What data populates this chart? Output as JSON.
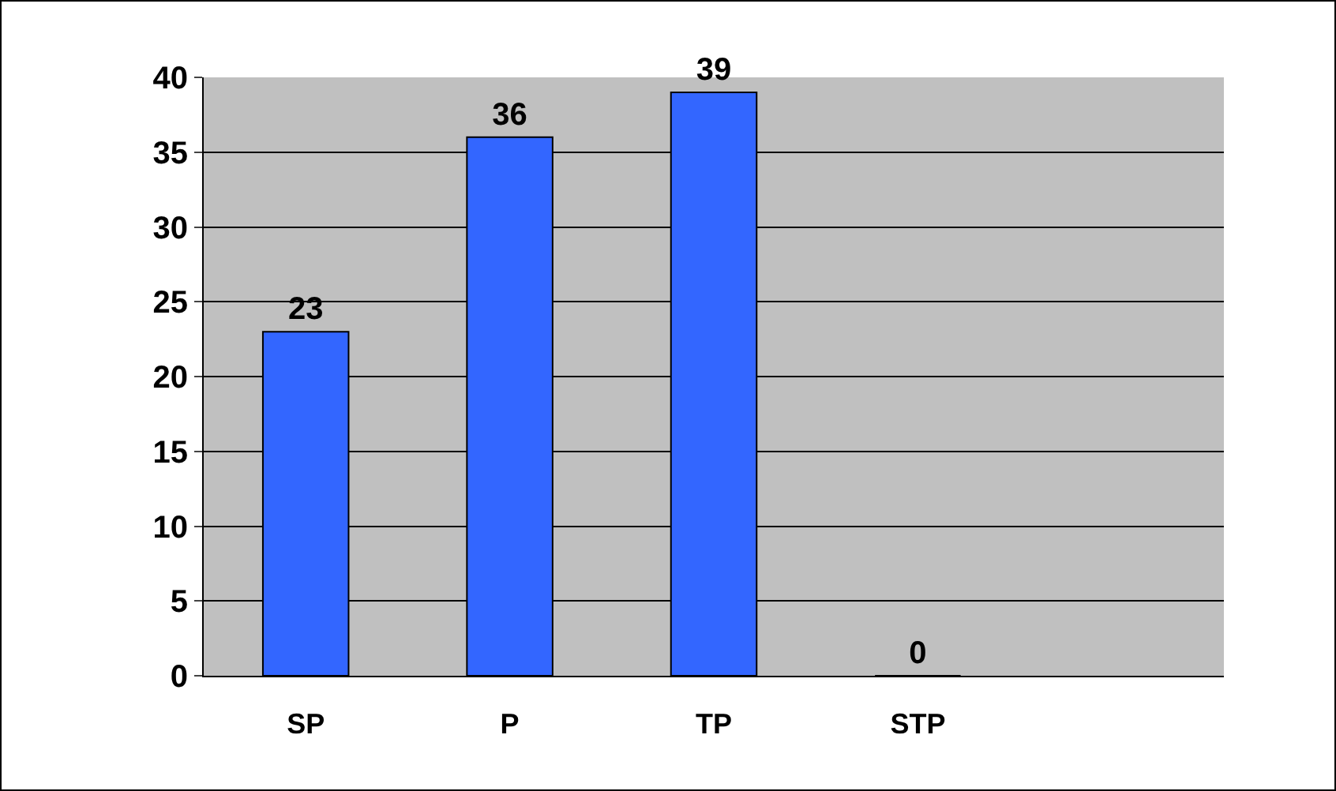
{
  "chart_data": {
    "type": "bar",
    "categories": [
      "SP",
      "P",
      "TP",
      "STP",
      null
    ],
    "values": [
      23,
      36,
      39,
      0,
      null
    ],
    "color": "#3366ff",
    "ylim": [
      0,
      40
    ],
    "yticks": [
      0,
      5,
      10,
      15,
      20,
      25,
      30,
      35,
      40
    ],
    "grid": "y",
    "data_labels": true,
    "legend": false
  }
}
